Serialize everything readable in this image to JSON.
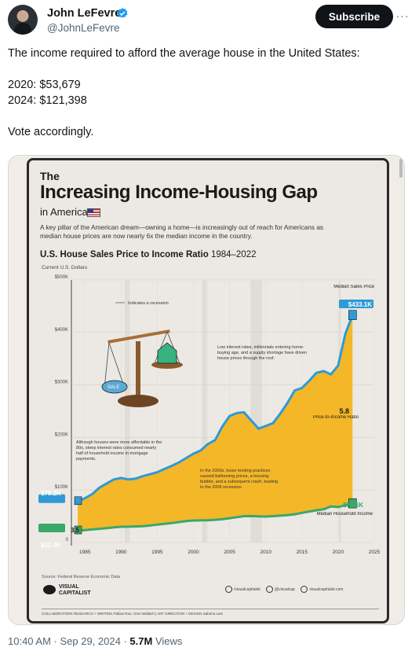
{
  "author": {
    "name": "John LeFevre",
    "handle": "@JohnLeFevre",
    "subscribe_label": "Subscribe",
    "more_label": "···"
  },
  "tweet": {
    "lines": [
      "The income required to afford the average house in the United States:",
      "",
      "2020: $53,679",
      "2024: $121,398",
      "",
      "Vote accordingly."
    ]
  },
  "infographic": {
    "the": "The",
    "title": "Increasing Income-Housing Gap",
    "in_america": "in America",
    "description": "A key pillar of the American dream—owning a home—is increasingly out of reach for Americans as median house prices are now nearly 6x the median income in the country.",
    "subtitle_bold": "U.S. House Sales Price to Income Ratio",
    "subtitle_years": "1984–2022",
    "units": "Current U.S. Dollars",
    "recession_note": "Indicates a recession",
    "annotation_80s": "Although houses were more affordable in the 80s, steep interest rates consumed nearly half of household income in mortgage payments.",
    "annotation_2000s": "In the 2000s, loose lending practices caused ballooning prices, a housing bubble, and a subsequent crash, leading to the 2008 recession.",
    "annotation_recent": "Low interest rates, millennials entering home-buying age, and a supply shortage have driven house prices through the roof.",
    "label_median_sales": "Median Sales Price",
    "label_median_sales_value": "$433.1K",
    "label_median_income": "Median Household Income",
    "label_median_income_value": "$74.6K",
    "label_start_price": "$78.2K",
    "label_start_income": "$22.4K",
    "label_start_ratio": "3.5",
    "label_end_ratio": "5.8",
    "label_ratio_caption": "Price-to-Income Ratio",
    "scale_label": "SALE",
    "source": "Source: Federal Reserve Economic Data",
    "brand": "VISUAL CAPITALIST",
    "social_1": "/visualcapitalist",
    "social_2": "@visualcap",
    "social_3": "visualcapitalist.com",
    "credits": "COLLABORATORS   RESEARCH + WRITING Pallavi Rao, Omri Wallach  |  ART DIRECTION + DESIGN Sabrina Lam"
  },
  "chart_data": {
    "type": "area",
    "title": "U.S. House Sales Price to Income Ratio 1984–2022",
    "ylabel": "Current U.S. Dollars",
    "xlim": [
      1984,
      2025
    ],
    "ylim": [
      0,
      500000
    ],
    "x_ticks": [
      1985,
      1990,
      1995,
      2000,
      2005,
      2010,
      2015,
      2020,
      2025
    ],
    "y_ticks": [
      0,
      100000,
      200000,
      300000,
      400000,
      500000
    ],
    "y_tick_labels": [
      "0",
      "$100K",
      "$200K",
      "$300K",
      "$400K",
      "$500K"
    ],
    "x": [
      1984,
      1985,
      1986,
      1987,
      1988,
      1989,
      1990,
      1991,
      1992,
      1993,
      1994,
      1995,
      1996,
      1997,
      1998,
      1999,
      2000,
      2001,
      2002,
      2003,
      2004,
      2005,
      2006,
      2007,
      2008,
      2009,
      2010,
      2011,
      2012,
      2013,
      2014,
      2015,
      2016,
      2017,
      2018,
      2019,
      2020,
      2021,
      2022
    ],
    "series": [
      {
        "name": "Median Sales Price",
        "color": "#2e9ad6",
        "values": [
          78200,
          84300,
          92000,
          104500,
          112500,
          120000,
          122900,
          120000,
          121500,
          126500,
          130000,
          133900,
          140000,
          146000,
          152500,
          161000,
          169000,
          175200,
          187600,
          195000,
          221000,
          240900,
          246500,
          247900,
          232100,
          216700,
          221800,
          227200,
          245200,
          265800,
          289500,
          294200,
          307800,
          323100,
          326400,
          320000,
          336900,
          397100,
          433100
        ]
      },
      {
        "name": "Median Household Income",
        "color": "#3aa86b",
        "values": [
          22400,
          23600,
          24900,
          26100,
          27200,
          28900,
          29900,
          30100,
          30600,
          31200,
          32300,
          34100,
          35500,
          37000,
          38900,
          40700,
          41990,
          42200,
          42400,
          43300,
          44300,
          46300,
          48200,
          50200,
          50300,
          49800,
          49400,
          50100,
          51000,
          52200,
          53700,
          56500,
          59000,
          61400,
          63200,
          68700,
          67500,
          70800,
          74600
        ]
      }
    ],
    "recessions": [
      [
        1990.5,
        1991.2
      ],
      [
        2001.2,
        2001.9
      ],
      [
        2007.9,
        2009.5
      ],
      [
        2020.1,
        2020.4
      ]
    ],
    "fill_color": "#f4b728"
  }
}
